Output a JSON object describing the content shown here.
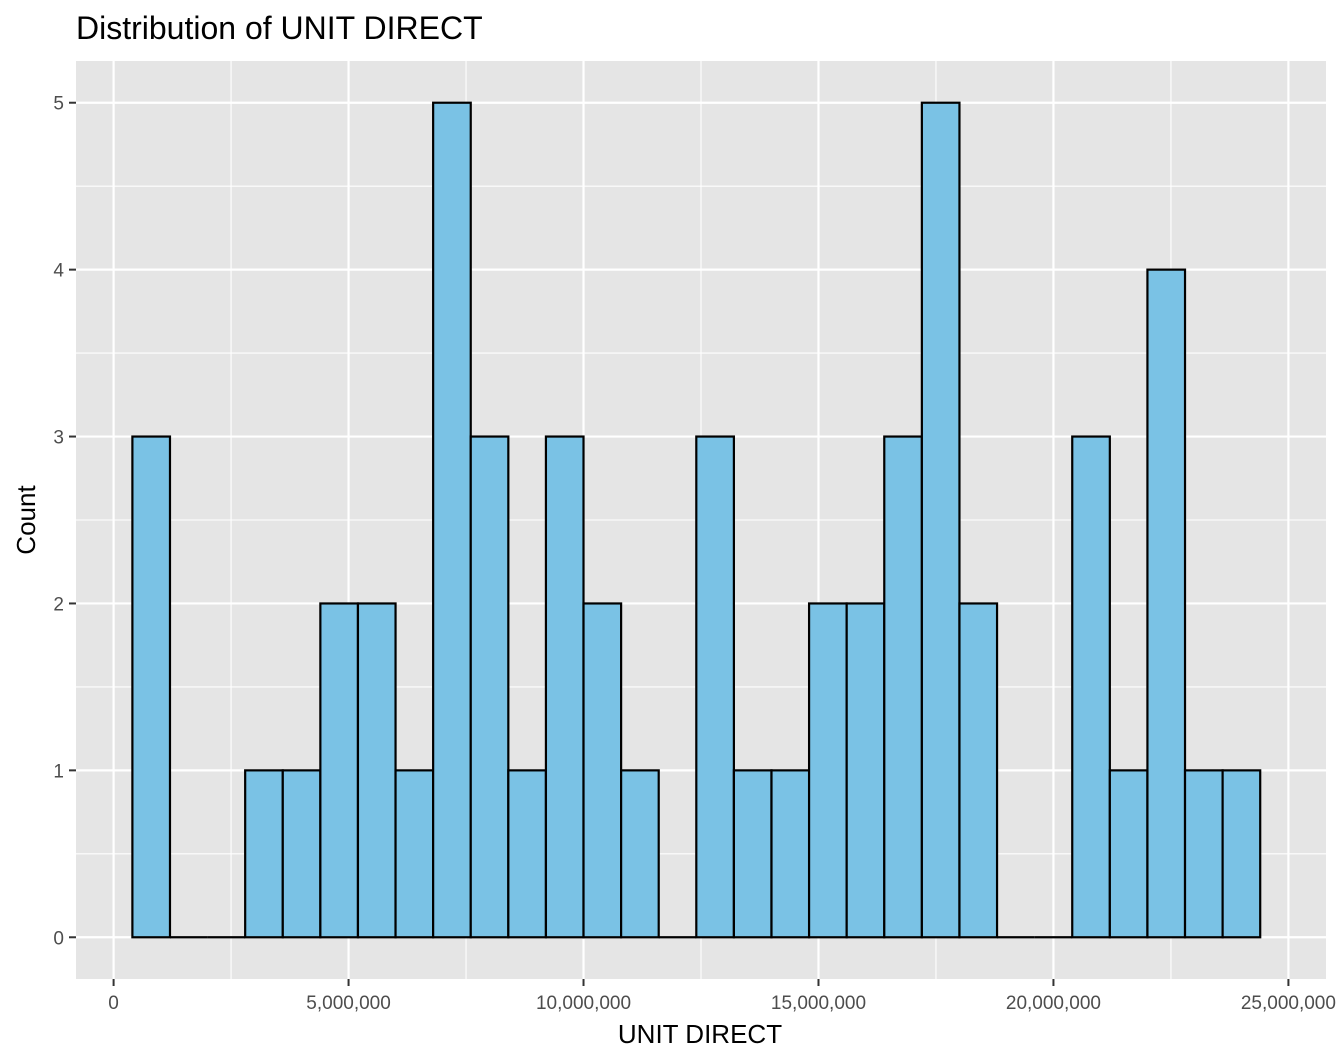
{
  "chart_data": {
    "type": "bar",
    "title": "Distribution of UNIT DIRECT",
    "xlabel": "UNIT DIRECT",
    "ylabel": "Count",
    "x_tick_labels": [
      "0",
      "5,000,000",
      "10,000,000",
      "15,000,000",
      "20,000,000",
      "25,000,000"
    ],
    "x_ticks": [
      0,
      5000000,
      10000000,
      15000000,
      20000000,
      25000000
    ],
    "y_ticks": [
      0,
      1,
      2,
      3,
      4,
      5
    ],
    "y_tick_labels": [
      "0",
      "1",
      "2",
      "3",
      "4",
      "5"
    ],
    "xlim": [
      -800000,
      25800000
    ],
    "ylim": [
      -0.25,
      5.25
    ],
    "bin_width": 800000,
    "bins_start": [
      400000,
      1200000,
      2000000,
      2800000,
      3600000,
      4400000,
      5200000,
      6000000,
      6800000,
      7600000,
      8400000,
      9200000,
      10000000,
      10800000,
      11600000,
      12400000,
      13200000,
      14000000,
      14800000,
      15600000,
      16400000,
      17200000,
      18000000,
      18800000,
      19600000,
      20400000,
      21200000,
      22000000,
      22800000,
      23600000
    ],
    "values": [
      3,
      0,
      0,
      1,
      1,
      2,
      2,
      1,
      5,
      3,
      1,
      3,
      2,
      1,
      0,
      3,
      1,
      1,
      2,
      2,
      3,
      5,
      2,
      0,
      0,
      3,
      1,
      4,
      1,
      1
    ],
    "grid": true,
    "fill_color": "#7AC2E5",
    "border_color": "#000000",
    "panel_color": "#E5E5E5",
    "grid_color": "#FFFFFF"
  }
}
